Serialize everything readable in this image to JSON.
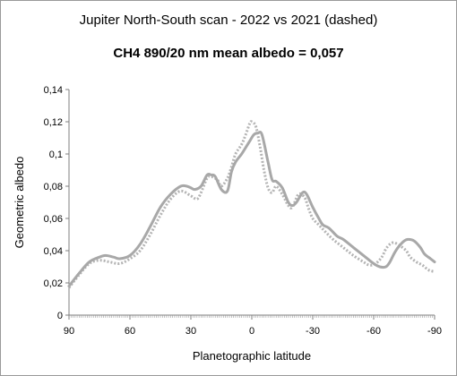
{
  "chart_data": {
    "type": "line",
    "title": "Jupiter North-South scan - 2022 vs 2021 (dashed)",
    "subtitle": "CH4 890/20 nm mean albedo = 0,057",
    "xlabel": "Planetographic latitude",
    "ylabel": "Geometric albedo",
    "xlim": [
      90,
      -90
    ],
    "ylim": [
      0,
      0.14
    ],
    "x_ticks": [
      "90",
      "60",
      "30",
      "0",
      "-30",
      "-60",
      "-90"
    ],
    "y_ticks": [
      "0",
      "0,02",
      "0,04",
      "0,06",
      "0,08",
      "0,1",
      "0,12",
      "0,14"
    ],
    "grid": "none",
    "legend": "none",
    "series": [
      {
        "style": "solid",
        "color": "#a8a8a8",
        "x": [
          90,
          85,
          80,
          75,
          72,
          68,
          65,
          60,
          55,
          50,
          45,
          40,
          35,
          32,
          30,
          28,
          25,
          22,
          20,
          18,
          15,
          12,
          10,
          8,
          5,
          3,
          1,
          -1,
          -3,
          -5,
          -8,
          -10,
          -12,
          -15,
          -18,
          -20,
          -22,
          -25,
          -27,
          -30,
          -33,
          -35,
          -38,
          -42,
          -45,
          -50,
          -55,
          -60,
          -63,
          -66,
          -68,
          -70,
          -72,
          -75,
          -77,
          -80,
          -83,
          -85,
          -88,
          -90
        ],
        "values": [
          0.018,
          0.026,
          0.033,
          0.036,
          0.037,
          0.036,
          0.035,
          0.037,
          0.044,
          0.055,
          0.067,
          0.075,
          0.08,
          0.08,
          0.079,
          0.078,
          0.08,
          0.087,
          0.087,
          0.086,
          0.078,
          0.077,
          0.089,
          0.095,
          0.1,
          0.104,
          0.108,
          0.112,
          0.113,
          0.112,
          0.095,
          0.084,
          0.083,
          0.079,
          0.07,
          0.068,
          0.07,
          0.076,
          0.075,
          0.067,
          0.06,
          0.056,
          0.054,
          0.049,
          0.047,
          0.042,
          0.037,
          0.032,
          0.03,
          0.03,
          0.033,
          0.038,
          0.042,
          0.046,
          0.047,
          0.046,
          0.042,
          0.038,
          0.035,
          0.033
        ]
      },
      {
        "style": "dashed",
        "color": "#b4b4b4",
        "x": [
          90,
          85,
          80,
          75,
          70,
          65,
          60,
          55,
          50,
          45,
          40,
          35,
          30,
          27,
          25,
          22,
          20,
          17,
          15,
          12,
          10,
          8,
          5,
          3,
          1,
          0,
          -2,
          -4,
          -6,
          -8,
          -10,
          -12,
          -15,
          -18,
          -20,
          -23,
          -26,
          -28,
          -30,
          -33,
          -36,
          -40,
          -45,
          -50,
          -55,
          -58,
          -61,
          -64,
          -66,
          -68,
          -70,
          -73,
          -76,
          -78,
          -81,
          -84,
          -87,
          -90
        ],
        "values": [
          0.017,
          0.025,
          0.032,
          0.034,
          0.033,
          0.032,
          0.035,
          0.04,
          0.05,
          0.062,
          0.072,
          0.077,
          0.074,
          0.072,
          0.076,
          0.085,
          0.086,
          0.084,
          0.08,
          0.085,
          0.092,
          0.1,
          0.106,
          0.112,
          0.119,
          0.12,
          0.117,
          0.105,
          0.09,
          0.079,
          0.076,
          0.08,
          0.075,
          0.068,
          0.067,
          0.075,
          0.073,
          0.066,
          0.06,
          0.056,
          0.052,
          0.047,
          0.042,
          0.037,
          0.033,
          0.031,
          0.032,
          0.036,
          0.041,
          0.044,
          0.045,
          0.043,
          0.04,
          0.036,
          0.033,
          0.031,
          0.028,
          0.027
        ]
      }
    ]
  }
}
